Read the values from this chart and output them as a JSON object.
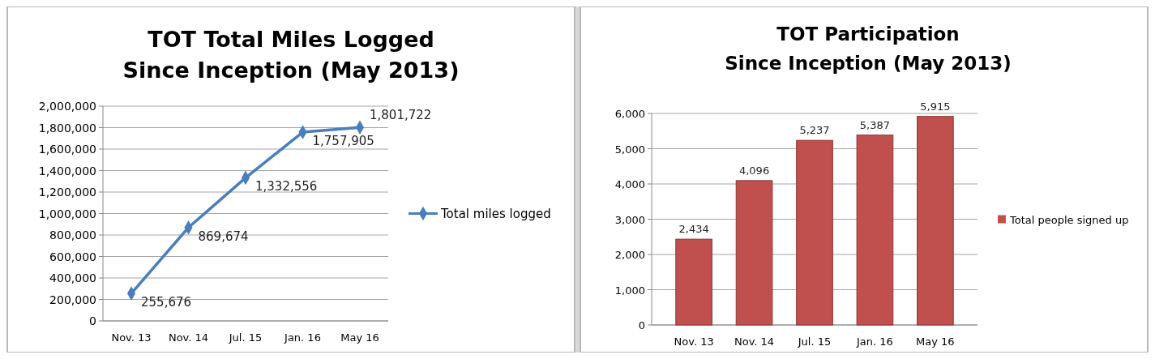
{
  "chart_data": [
    {
      "type": "line",
      "title": "TOT Total Miles Logged\nSince Inception (May 2013)",
      "categories": [
        "Nov. 13",
        "Nov. 14",
        "Jul. 15",
        "Jan. 16",
        "May 16"
      ],
      "series": [
        {
          "name": "Total miles logged",
          "color": "#4a7ebb",
          "values": [
            255676,
            869674,
            1332556,
            1757905,
            1801722
          ],
          "value_labels": [
            "255,676",
            "869,674",
            "1,332,556",
            "1,757,905",
            "1,801,722"
          ]
        }
      ],
      "ylim": [
        0,
        2000000
      ],
      "yticks": [
        {
          "value": 0,
          "label": "0"
        },
        {
          "value": 200000,
          "label": "200,000"
        },
        {
          "value": 400000,
          "label": "400,000"
        },
        {
          "value": 600000,
          "label": "600,000"
        },
        {
          "value": 800000,
          "label": "800,000"
        },
        {
          "value": 1000000,
          "label": "1,000,000"
        },
        {
          "value": 1200000,
          "label": "1,200,000"
        },
        {
          "value": 1400000,
          "label": "1,400,000"
        },
        {
          "value": 1600000,
          "label": "1,600,000"
        },
        {
          "value": 1800000,
          "label": "1,800,000"
        },
        {
          "value": 2000000,
          "label": "2,000,000"
        }
      ],
      "grid": "y",
      "legend": "right",
      "marker": "diamond"
    },
    {
      "type": "bar",
      "title": "TOT Participation\nSince Inception (May 2013)",
      "categories": [
        "Nov. 13",
        "Nov. 14",
        "Jul. 15",
        "Jan. 16",
        "May 16"
      ],
      "series": [
        {
          "name": "Total people signed up",
          "color": "#c0504d",
          "values": [
            2434,
            4096,
            5237,
            5387,
            5915
          ],
          "value_labels": [
            "2,434",
            "4,096",
            "5,237",
            "5,387",
            "5,915"
          ]
        }
      ],
      "ylim": [
        0,
        6000
      ],
      "yticks": [
        {
          "value": 0,
          "label": "0"
        },
        {
          "value": 1000,
          "label": "1,000"
        },
        {
          "value": 2000,
          "label": "2,000"
        },
        {
          "value": 3000,
          "label": "3,000"
        },
        {
          "value": 4000,
          "label": "4,000"
        },
        {
          "value": 5000,
          "label": "5,000"
        },
        {
          "value": 6000,
          "label": "6,000"
        }
      ],
      "grid": "y",
      "legend": "right"
    }
  ]
}
